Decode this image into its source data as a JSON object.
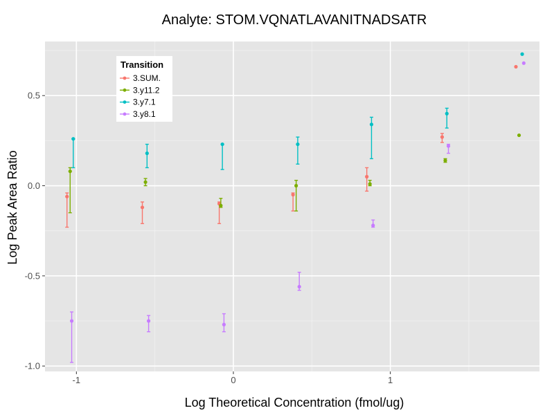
{
  "chart_data": {
    "type": "scatter",
    "title": "Analyte: STOM.VQNATLAVANITNADSATR",
    "xlabel": "Log Theoretical Concentration (fmol/ug)",
    "ylabel": "Log Peak Area Ratio",
    "xlim": [
      -1.2,
      1.95
    ],
    "ylim": [
      -1.03,
      0.8
    ],
    "x_ticks": [
      -1,
      0,
      1
    ],
    "x_tick_labels": [
      "-1",
      "0",
      "1"
    ],
    "y_ticks": [
      -1.0,
      -0.5,
      0.0,
      0.5
    ],
    "y_tick_labels": [
      "-1.0",
      "-0.5",
      "0.0",
      "0.5"
    ],
    "grid": true,
    "legend": {
      "title": "Transition",
      "position": "top-left"
    },
    "error_bars": true,
    "series": [
      {
        "name": "3.SUM.",
        "color": "#F8766D",
        "points": [
          {
            "x": -1.06,
            "y": -0.06,
            "ymin": -0.23,
            "ymax": -0.04
          },
          {
            "x": -0.58,
            "y": -0.12,
            "ymin": -0.21,
            "ymax": -0.09
          },
          {
            "x": -0.09,
            "y": -0.1,
            "ymin": -0.21,
            "ymax": -0.09
          },
          {
            "x": 0.38,
            "y": -0.05,
            "ymin": -0.14,
            "ymax": -0.04
          },
          {
            "x": 0.85,
            "y": 0.05,
            "ymin": -0.03,
            "ymax": 0.1
          },
          {
            "x": 1.33,
            "y": 0.27,
            "ymin": 0.24,
            "ymax": 0.29
          },
          {
            "x": 1.8,
            "y": 0.66
          }
        ]
      },
      {
        "name": "3.y11.2",
        "color": "#7CAE00",
        "points": [
          {
            "x": -1.04,
            "y": 0.08,
            "ymin": -0.15,
            "ymax": 0.1
          },
          {
            "x": -0.56,
            "y": 0.02,
            "ymin": 0.0,
            "ymax": 0.04
          },
          {
            "x": -0.08,
            "y": -0.11,
            "ymin": -0.12,
            "ymax": -0.07
          },
          {
            "x": 0.4,
            "y": 0.0,
            "ymin": -0.14,
            "ymax": 0.03
          },
          {
            "x": 0.87,
            "y": 0.01,
            "ymin": 0.0,
            "ymax": 0.03
          },
          {
            "x": 1.35,
            "y": 0.14,
            "ymin": 0.13,
            "ymax": 0.15
          },
          {
            "x": 1.82,
            "y": 0.28
          }
        ]
      },
      {
        "name": "3.y7.1",
        "color": "#00BFC4",
        "points": [
          {
            "x": -1.02,
            "y": 0.26,
            "ymin": 0.1,
            "ymax": 0.26
          },
          {
            "x": -0.55,
            "y": 0.18,
            "ymin": 0.1,
            "ymax": 0.23
          },
          {
            "x": -0.07,
            "y": 0.23,
            "ymin": 0.09,
            "ymax": 0.23
          },
          {
            "x": 0.41,
            "y": 0.23,
            "ymin": 0.12,
            "ymax": 0.27
          },
          {
            "x": 0.88,
            "y": 0.34,
            "ymin": 0.15,
            "ymax": 0.38
          },
          {
            "x": 1.36,
            "y": 0.4,
            "ymin": 0.32,
            "ymax": 0.43
          },
          {
            "x": 1.84,
            "y": 0.73
          }
        ]
      },
      {
        "name": "3.y8.1",
        "color": "#C77CFF",
        "points": [
          {
            "x": -1.03,
            "y": -0.75,
            "ymin": -0.98,
            "ymax": -0.7
          },
          {
            "x": -0.54,
            "y": -0.75,
            "ymin": -0.81,
            "ymax": -0.72
          },
          {
            "x": -0.06,
            "y": -0.77,
            "ymin": -0.81,
            "ymax": -0.71
          },
          {
            "x": 0.42,
            "y": -0.56,
            "ymin": -0.58,
            "ymax": -0.48
          },
          {
            "x": 0.89,
            "y": -0.22,
            "ymin": -0.23,
            "ymax": -0.19
          },
          {
            "x": 1.37,
            "y": 0.22,
            "ymin": 0.18,
            "ymax": 0.23
          },
          {
            "x": 1.85,
            "y": 0.68
          }
        ]
      }
    ]
  }
}
